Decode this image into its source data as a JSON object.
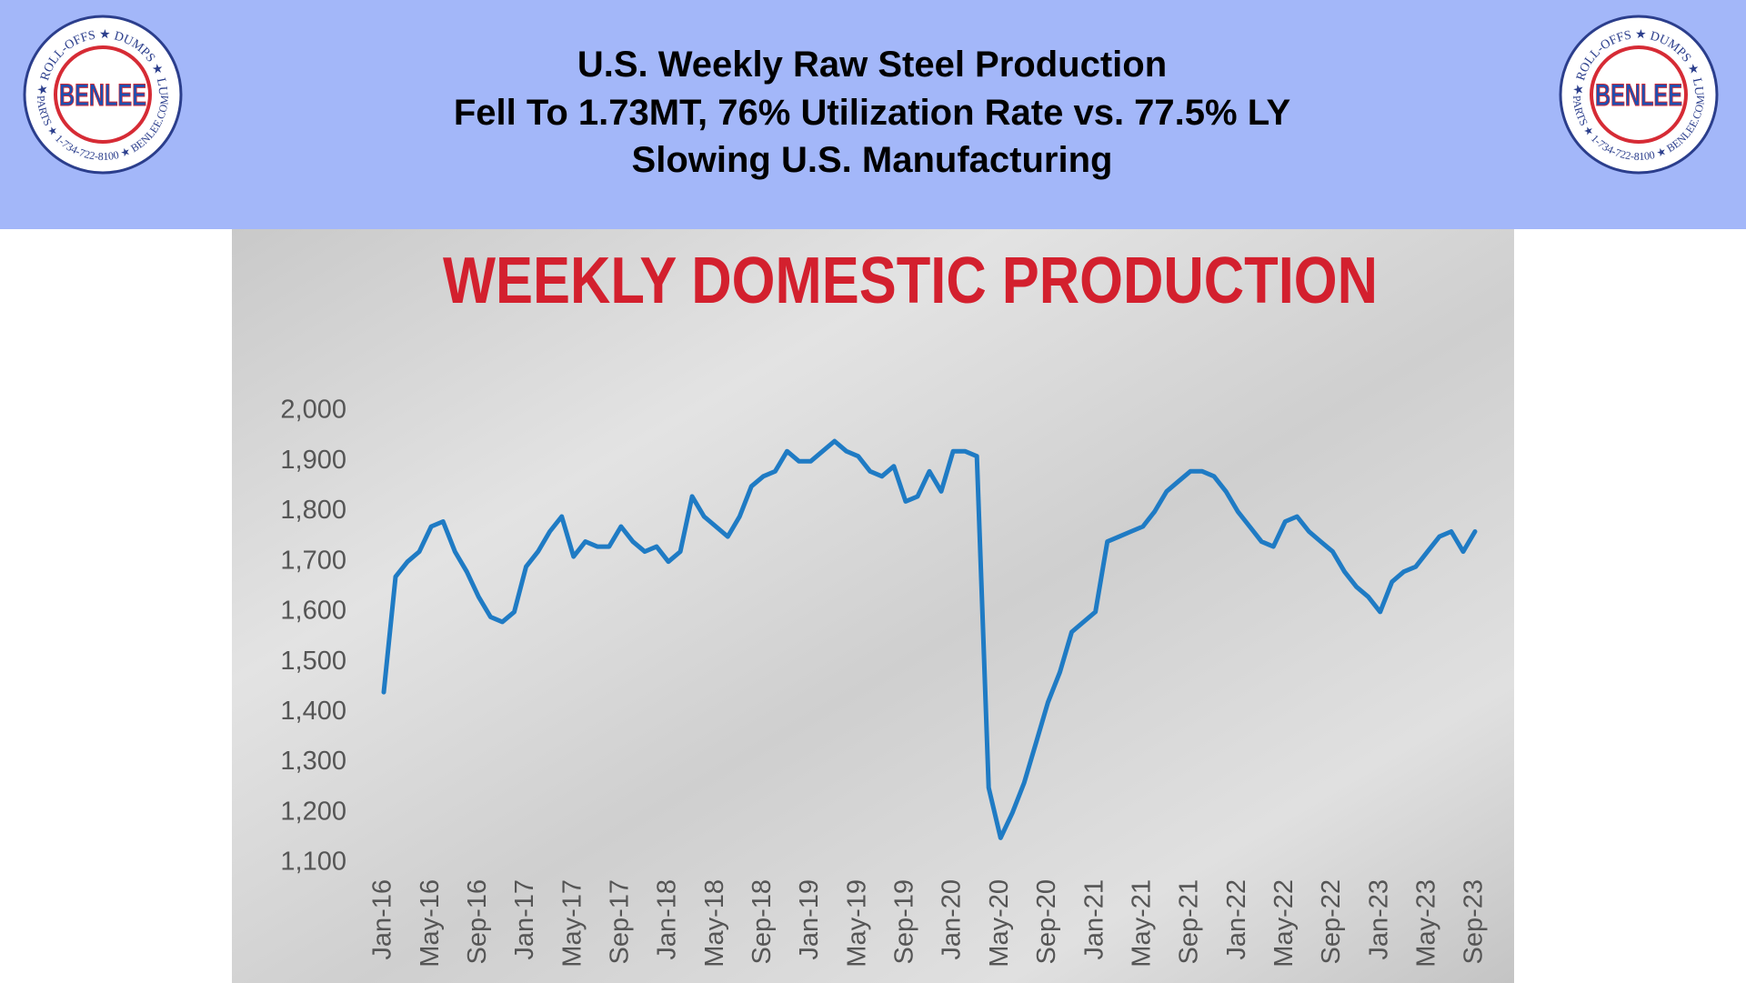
{
  "header": {
    "title_lines": [
      "U.S. Weekly Raw Steel Production",
      "Fell To 1.73MT, 76% Utilization Rate vs. 77.5% LY",
      "Slowing U.S. Manufacturing"
    ]
  },
  "logo": {
    "brand": "BENLEE",
    "ring_top": "TARPS ★ ROLL-OFFS ★ DUMPS ★ LUGGERS",
    "ring_bottom": "PARTS ★ 1-734-722-8100 ★ BENLEE.COM"
  },
  "chart_data": {
    "type": "line",
    "title": "WEEKLY DOMESTIC PRODUCTION",
    "color": "#1f7bc4",
    "categories": [
      "Jan-16",
      null,
      null,
      null,
      "May-16",
      null,
      null,
      null,
      "Sep-16",
      null,
      null,
      null,
      "Jan-17",
      null,
      null,
      null,
      "May-17",
      null,
      null,
      null,
      "Sep-17",
      null,
      null,
      null,
      "Jan-18",
      null,
      null,
      null,
      "May-18",
      null,
      null,
      null,
      "Sep-18",
      null,
      null,
      null,
      "Jan-19",
      null,
      null,
      null,
      "May-19",
      null,
      null,
      null,
      "Sep-19",
      null,
      null,
      null,
      "Jan-20",
      null,
      null,
      null,
      "May-20",
      null,
      null,
      null,
      "Sep-20",
      null,
      null,
      null,
      "Jan-21",
      null,
      null,
      null,
      "May-21",
      null,
      null,
      null,
      "Sep-21",
      null,
      null,
      null,
      "Jan-22",
      null,
      null,
      null,
      "May-22",
      null,
      null,
      null,
      "Sep-22",
      null,
      null,
      null,
      "Jan-23",
      null,
      null,
      null,
      "May-23",
      null,
      null,
      null,
      "Sep-23"
    ],
    "values": [
      1440,
      1670,
      1700,
      1720,
      1770,
      1780,
      1720,
      1680,
      1630,
      1590,
      1580,
      1600,
      1690,
      1720,
      1760,
      1790,
      1710,
      1740,
      1730,
      1730,
      1770,
      1740,
      1720,
      1730,
      1700,
      1720,
      1830,
      1790,
      1770,
      1750,
      1790,
      1850,
      1870,
      1880,
      1920,
      1900,
      1900,
      1920,
      1940,
      1920,
      1910,
      1880,
      1870,
      1890,
      1820,
      1830,
      1880,
      1840,
      1920,
      1920,
      1910,
      1250,
      1150,
      1200,
      1260,
      1340,
      1420,
      1480,
      1560,
      1580,
      1600,
      1740,
      1750,
      1760,
      1770,
      1800,
      1840,
      1860,
      1880,
      1880,
      1870,
      1840,
      1800,
      1770,
      1740,
      1730,
      1780,
      1790,
      1760,
      1740,
      1720,
      1680,
      1650,
      1630,
      1600,
      1660,
      1680,
      1690,
      1720,
      1750,
      1760,
      1720,
      1760
    ],
    "ylim": [
      1100,
      2000
    ],
    "yticks": [
      {
        "value": 1100,
        "label": "1,100"
      },
      {
        "value": 1200,
        "label": "1,200"
      },
      {
        "value": 1300,
        "label": "1,300"
      },
      {
        "value": 1400,
        "label": "1,400"
      },
      {
        "value": 1500,
        "label": "1,500"
      },
      {
        "value": 1600,
        "label": "1,600"
      },
      {
        "value": 1700,
        "label": "1,700"
      },
      {
        "value": 1800,
        "label": "1,800"
      },
      {
        "value": 1900,
        "label": "1,900"
      },
      {
        "value": 2000,
        "label": "2,000"
      }
    ],
    "grid": false
  }
}
